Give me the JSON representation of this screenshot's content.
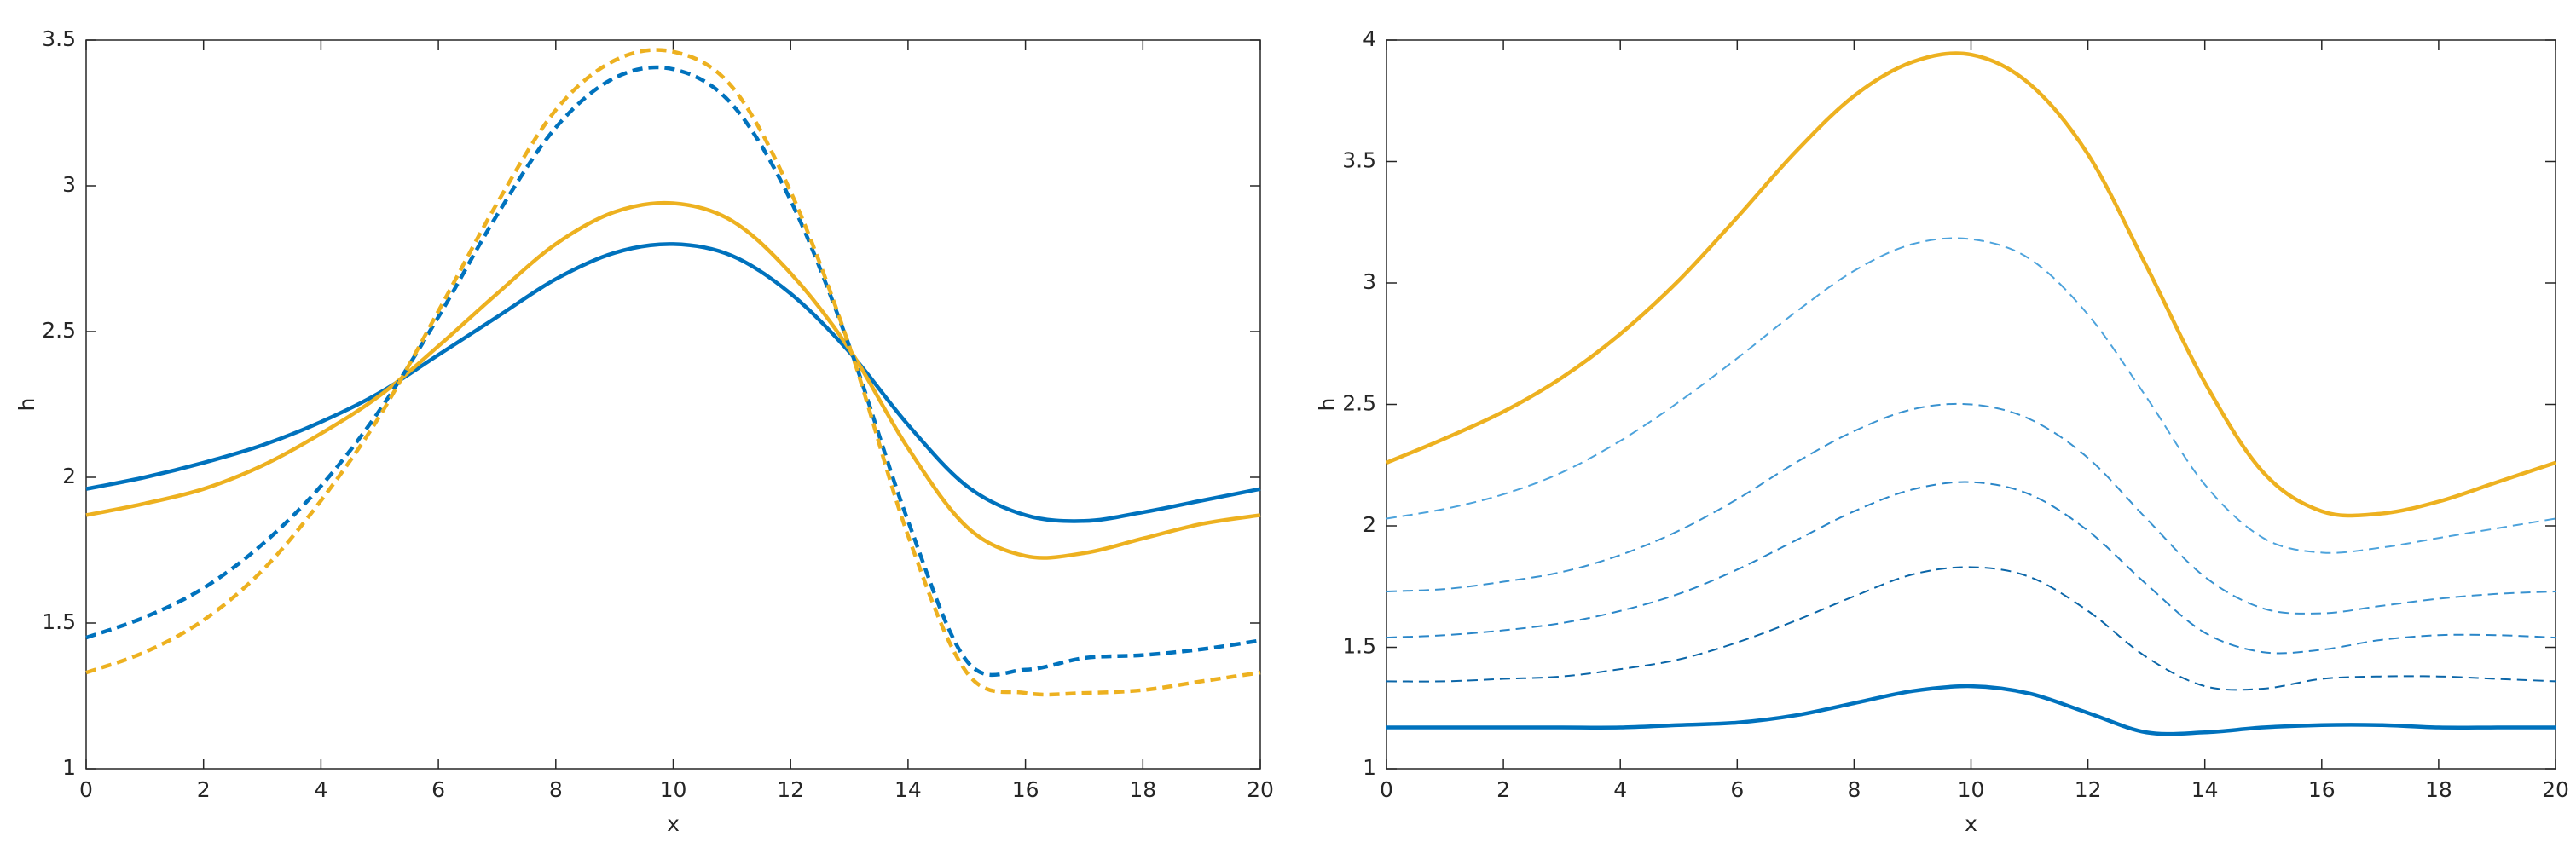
{
  "chart_data": [
    {
      "type": "line",
      "xlabel": "x",
      "ylabel": "h",
      "x": [
        0,
        1,
        2,
        3,
        4,
        5,
        6,
        7,
        8,
        9,
        10,
        11,
        12,
        13,
        14,
        15,
        16,
        17,
        18,
        19,
        20
      ],
      "xlim": [
        0,
        20
      ],
      "xticks": [
        0,
        2,
        4,
        6,
        8,
        10,
        12,
        14,
        16,
        18,
        20
      ],
      "ylim": [
        1,
        3.5
      ],
      "yticks": [
        1,
        1.5,
        2,
        2.5,
        3,
        3.5
      ],
      "series": [
        {
          "color": "#0072bd",
          "line_style": "solid",
          "values": [
            1.96,
            2.0,
            2.05,
            2.11,
            2.19,
            2.29,
            2.42,
            2.55,
            2.68,
            2.77,
            2.8,
            2.76,
            2.63,
            2.43,
            2.18,
            1.97,
            1.87,
            1.85,
            1.88,
            1.92,
            1.96
          ]
        },
        {
          "color": "#edb120",
          "line_style": "solid",
          "values": [
            1.87,
            1.91,
            1.96,
            2.04,
            2.15,
            2.28,
            2.45,
            2.63,
            2.8,
            2.91,
            2.94,
            2.88,
            2.7,
            2.44,
            2.1,
            1.83,
            1.73,
            1.74,
            1.79,
            1.84,
            1.87
          ]
        },
        {
          "color": "#0072bd",
          "line_style": "dashed",
          "values": [
            1.45,
            1.52,
            1.62,
            1.77,
            1.97,
            2.23,
            2.55,
            2.9,
            3.2,
            3.37,
            3.4,
            3.28,
            2.95,
            2.45,
            1.85,
            1.37,
            1.34,
            1.38,
            1.39,
            1.41,
            1.44
          ]
        },
        {
          "color": "#edb120",
          "line_style": "dashed",
          "values": [
            1.33,
            1.4,
            1.51,
            1.68,
            1.92,
            2.21,
            2.57,
            2.94,
            3.26,
            3.43,
            3.46,
            3.34,
            2.98,
            2.45,
            1.8,
            1.33,
            1.26,
            1.26,
            1.27,
            1.3,
            1.33
          ]
        }
      ]
    },
    {
      "type": "line",
      "xlabel": "x",
      "ylabel": "h",
      "x": [
        0,
        1,
        2,
        3,
        4,
        5,
        6,
        7,
        8,
        9,
        10,
        11,
        12,
        13,
        14,
        15,
        16,
        17,
        18,
        19,
        20
      ],
      "xlim": [
        0,
        20
      ],
      "xticks": [
        0,
        2,
        4,
        6,
        8,
        10,
        12,
        14,
        16,
        18,
        20
      ],
      "ylim": [
        1,
        4
      ],
      "yticks": [
        1,
        1.5,
        2,
        2.5,
        3,
        3.5,
        4
      ],
      "series": [
        {
          "color": "#edb120",
          "line_style": "solid",
          "values": [
            2.26,
            2.36,
            2.47,
            2.61,
            2.79,
            3.01,
            3.27,
            3.54,
            3.77,
            3.91,
            3.94,
            3.82,
            3.53,
            3.07,
            2.59,
            2.22,
            2.06,
            2.05,
            2.1,
            2.18,
            2.26
          ]
        },
        {
          "color": "#4da3dc",
          "line_style": "thin-dashed",
          "values": [
            2.03,
            2.07,
            2.13,
            2.22,
            2.35,
            2.51,
            2.69,
            2.88,
            3.05,
            3.16,
            3.18,
            3.1,
            2.87,
            2.53,
            2.17,
            1.95,
            1.89,
            1.91,
            1.95,
            1.99,
            2.03
          ]
        },
        {
          "color": "#3a93d0",
          "line_style": "thin-dashed",
          "values": [
            1.73,
            1.74,
            1.77,
            1.81,
            1.88,
            1.98,
            2.11,
            2.26,
            2.39,
            2.48,
            2.5,
            2.44,
            2.28,
            2.03,
            1.79,
            1.66,
            1.64,
            1.67,
            1.7,
            1.72,
            1.73
          ]
        },
        {
          "color": "#2a86c8",
          "line_style": "thin-dashed",
          "values": [
            1.54,
            1.55,
            1.57,
            1.6,
            1.65,
            1.72,
            1.82,
            1.94,
            2.06,
            2.15,
            2.18,
            2.13,
            1.98,
            1.76,
            1.56,
            1.48,
            1.49,
            1.53,
            1.55,
            1.55,
            1.54
          ]
        },
        {
          "color": "#0b66a8",
          "line_style": "thin-dashed",
          "values": [
            1.36,
            1.36,
            1.37,
            1.38,
            1.41,
            1.45,
            1.52,
            1.61,
            1.71,
            1.8,
            1.83,
            1.79,
            1.65,
            1.46,
            1.34,
            1.33,
            1.37,
            1.38,
            1.38,
            1.37,
            1.36
          ]
        },
        {
          "color": "#0072bd",
          "line_style": "solid",
          "values": [
            1.17,
            1.17,
            1.17,
            1.17,
            1.17,
            1.18,
            1.19,
            1.22,
            1.27,
            1.32,
            1.34,
            1.31,
            1.23,
            1.15,
            1.15,
            1.17,
            1.18,
            1.18,
            1.17,
            1.17,
            1.17
          ]
        }
      ]
    }
  ]
}
